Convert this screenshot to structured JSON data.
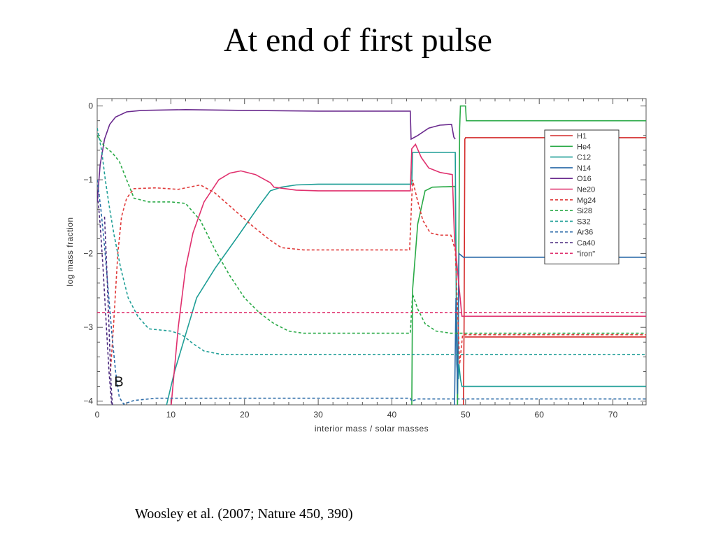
{
  "slide": {
    "title": "At end of first pulse",
    "caption": "Woosley et al. (2007; Nature 450, 390)"
  },
  "chart_data": {
    "type": "line",
    "xlabel": "interior mass / solar masses",
    "ylabel": "log mass fraction",
    "xlim": [
      0,
      74.5
    ],
    "ylim": [
      -4.05,
      0.1
    ],
    "xticks": [
      0,
      10,
      20,
      30,
      40,
      50,
      60,
      70
    ],
    "yticks": [
      0,
      -1,
      -2,
      -3,
      -4
    ],
    "xtick_labels": [
      "0",
      "10",
      "20",
      "30",
      "40",
      "50",
      "60",
      "70"
    ],
    "ytick_labels": [
      "0",
      "−1",
      "−2",
      "−3",
      "−4"
    ],
    "grid": false,
    "legend_position": "top-right",
    "annotation": "B",
    "series": [
      {
        "name": "H1",
        "color": "#d42a2a",
        "dash": "solid",
        "points": [
          [
            49.7,
            -4.1
          ],
          [
            49.8,
            -3.0
          ],
          [
            49.9,
            -0.45
          ],
          [
            50.0,
            -0.43
          ],
          [
            74.5,
            -0.43
          ]
        ]
      },
      {
        "name": "H1",
        "color": "#d42a2a",
        "dash": "solid",
        "legend": false,
        "points": [
          [
            49.9,
            -3.13
          ],
          [
            74.5,
            -3.13
          ]
        ]
      },
      {
        "name": "He4",
        "color": "#2aaa47",
        "dash": "solid",
        "points": [
          [
            42.7,
            -4.1
          ],
          [
            42.8,
            -2.5
          ],
          [
            43.5,
            -1.6
          ],
          [
            44.5,
            -1.15
          ],
          [
            45.5,
            -1.1
          ],
          [
            48.6,
            -1.09
          ],
          [
            48.7,
            -2.0
          ],
          [
            48.9,
            -4.1
          ],
          [
            49.0,
            -3.2
          ],
          [
            49.2,
            -0.3
          ],
          [
            49.3,
            0.0
          ],
          [
            50.0,
            0.0
          ],
          [
            50.1,
            -0.2
          ],
          [
            74.5,
            -0.2
          ]
        ]
      },
      {
        "name": "C12",
        "color": "#1e9e96",
        "dash": "solid",
        "points": [
          [
            9.3,
            -4.1
          ],
          [
            10.5,
            -3.6
          ],
          [
            12,
            -3.1
          ],
          [
            13.5,
            -2.6
          ],
          [
            16,
            -2.2
          ],
          [
            19,
            -1.78
          ],
          [
            22,
            -1.35
          ],
          [
            23.5,
            -1.15
          ],
          [
            25,
            -1.1
          ],
          [
            27,
            -1.07
          ],
          [
            30,
            -1.06
          ],
          [
            42.7,
            -1.06
          ],
          [
            42.8,
            -0.63
          ],
          [
            48.6,
            -0.63
          ],
          [
            48.8,
            -3.5
          ],
          [
            49.0,
            -3.7
          ],
          [
            49.1,
            -3.5
          ],
          [
            49.3,
            -3.7
          ],
          [
            49.5,
            -3.8
          ],
          [
            74.5,
            -3.8
          ]
        ]
      },
      {
        "name": "N14",
        "color": "#2a6aa8",
        "dash": "solid",
        "points": [
          [
            48.5,
            -4.1
          ],
          [
            48.7,
            -2.6
          ],
          [
            48.9,
            -3.9
          ],
          [
            49.1,
            -2.0
          ],
          [
            49.7,
            -2.05
          ],
          [
            74.5,
            -2.05
          ]
        ]
      },
      {
        "name": "O16",
        "color": "#6a2a8e",
        "dash": "solid",
        "points": [
          [
            0,
            -1.3
          ],
          [
            0.4,
            -0.8
          ],
          [
            1,
            -0.45
          ],
          [
            1.7,
            -0.25
          ],
          [
            2.5,
            -0.15
          ],
          [
            4,
            -0.08
          ],
          [
            6,
            -0.06
          ],
          [
            12,
            -0.05
          ],
          [
            20,
            -0.06
          ],
          [
            30,
            -0.07
          ],
          [
            40,
            -0.07
          ],
          [
            42.5,
            -0.07
          ],
          [
            42.6,
            -0.45
          ],
          [
            43.5,
            -0.4
          ],
          [
            45,
            -0.3
          ],
          [
            46.5,
            -0.26
          ],
          [
            48.1,
            -0.25
          ],
          [
            48.4,
            -0.42
          ],
          [
            48.6,
            -0.45
          ]
        ]
      },
      {
        "name": "Ne20",
        "color": "#e0306e",
        "dash": "solid",
        "points": [
          [
            10,
            -4.1
          ],
          [
            11,
            -3.0
          ],
          [
            12,
            -2.2
          ],
          [
            13,
            -1.72
          ],
          [
            14.5,
            -1.3
          ],
          [
            16.5,
            -1.0
          ],
          [
            18,
            -0.91
          ],
          [
            19.5,
            -0.88
          ],
          [
            21.5,
            -0.93
          ],
          [
            23.5,
            -1.04
          ],
          [
            24,
            -1.1
          ],
          [
            27,
            -1.14
          ],
          [
            30,
            -1.15
          ],
          [
            42.5,
            -1.15
          ],
          [
            42.7,
            -0.58
          ],
          [
            43.2,
            -0.52
          ],
          [
            44,
            -0.7
          ],
          [
            45,
            -0.84
          ],
          [
            46.5,
            -0.9
          ],
          [
            48.2,
            -0.93
          ],
          [
            48.5,
            -1.8
          ],
          [
            49.5,
            -2.85
          ],
          [
            74.5,
            -2.85
          ]
        ]
      },
      {
        "name": "Mg24",
        "color": "#e03a3a",
        "dash": "dashed",
        "points": [
          [
            1.8,
            -3.6
          ],
          [
            2.2,
            -3.0
          ],
          [
            2.8,
            -2.0
          ],
          [
            3.3,
            -1.5
          ],
          [
            4,
            -1.25
          ],
          [
            5,
            -1.12
          ],
          [
            8,
            -1.11
          ],
          [
            11,
            -1.13
          ],
          [
            14,
            -1.07
          ],
          [
            16,
            -1.18
          ],
          [
            18.5,
            -1.4
          ],
          [
            21,
            -1.62
          ],
          [
            23.5,
            -1.82
          ],
          [
            25,
            -1.92
          ],
          [
            28,
            -1.95
          ],
          [
            42.4,
            -1.95
          ],
          [
            42.8,
            -1.0
          ],
          [
            43.4,
            -1.25
          ],
          [
            44.2,
            -1.55
          ],
          [
            45.2,
            -1.72
          ],
          [
            46.5,
            -1.75
          ],
          [
            48.0,
            -1.75
          ],
          [
            48.6,
            -1.95
          ],
          [
            49.2,
            -3.5
          ],
          [
            49.6,
            -3.1
          ],
          [
            74.5,
            -3.1
          ]
        ]
      },
      {
        "name": "Si28",
        "color": "#2aaa47",
        "dash": "dashed",
        "points": [
          [
            0,
            -0.4
          ],
          [
            1,
            -0.55
          ],
          [
            2,
            -0.63
          ],
          [
            3,
            -0.75
          ],
          [
            4,
            -1.0
          ],
          [
            5,
            -1.25
          ],
          [
            7,
            -1.3
          ],
          [
            10,
            -1.3
          ],
          [
            12,
            -1.32
          ],
          [
            14,
            -1.55
          ],
          [
            16,
            -1.95
          ],
          [
            18,
            -2.3
          ],
          [
            20,
            -2.6
          ],
          [
            22,
            -2.8
          ],
          [
            24,
            -2.95
          ],
          [
            26,
            -3.05
          ],
          [
            28,
            -3.08
          ],
          [
            42.5,
            -3.08
          ],
          [
            42.8,
            -2.55
          ],
          [
            43.5,
            -2.75
          ],
          [
            44.5,
            -2.95
          ],
          [
            46,
            -3.05
          ],
          [
            48.0,
            -3.08
          ],
          [
            74.5,
            -3.08
          ]
        ]
      },
      {
        "name": "S32",
        "color": "#1e9e96",
        "dash": "dashed",
        "points": [
          [
            0,
            -0.3
          ],
          [
            0.6,
            -0.6
          ],
          [
            1.1,
            -1.0
          ],
          [
            1.7,
            -1.4
          ],
          [
            2.3,
            -1.75
          ],
          [
            3.2,
            -2.2
          ],
          [
            4.2,
            -2.6
          ],
          [
            5.5,
            -2.85
          ],
          [
            7,
            -3.02
          ],
          [
            10,
            -3.05
          ],
          [
            11.5,
            -3.1
          ],
          [
            13,
            -3.22
          ],
          [
            14.5,
            -3.32
          ],
          [
            17,
            -3.37
          ],
          [
            25,
            -3.37
          ],
          [
            74.5,
            -3.37
          ]
        ]
      },
      {
        "name": "Ar36",
        "color": "#2a6aa8",
        "dash": "dashed",
        "points": [
          [
            0,
            -1.0
          ],
          [
            0.5,
            -1.4
          ],
          [
            1,
            -1.9
          ],
          [
            1.5,
            -2.5
          ],
          [
            2,
            -3.1
          ],
          [
            2.5,
            -3.6
          ],
          [
            3,
            -3.95
          ],
          [
            3.6,
            -4.04
          ],
          [
            5,
            -3.99
          ],
          [
            8,
            -3.96
          ],
          [
            20,
            -3.96
          ],
          [
            42.5,
            -3.96
          ],
          [
            42.7,
            -4.0
          ],
          [
            43.5,
            -3.97
          ],
          [
            74.5,
            -3.97
          ]
        ]
      },
      {
        "name": "Ca40",
        "color": "#4a2a7e",
        "dash": "dashed",
        "points": [
          [
            0,
            -1.15
          ],
          [
            0.4,
            -1.6
          ],
          [
            0.8,
            -2.2
          ],
          [
            1.2,
            -2.9
          ],
          [
            1.6,
            -3.6
          ],
          [
            2.0,
            -4.1
          ]
        ]
      },
      {
        "name": "Ca40",
        "color": "#4a2a7e",
        "dash": "dashed",
        "legend": false,
        "points": [
          [
            1.0,
            -1.5
          ],
          [
            1.3,
            -2.2
          ],
          [
            1.6,
            -3.0
          ],
          [
            1.9,
            -3.8
          ],
          [
            2.1,
            -4.1
          ]
        ]
      },
      {
        "name": "\"iron\"",
        "color": "#e0306e",
        "dash": "dashed",
        "points": [
          [
            0,
            -2.8
          ],
          [
            74.5,
            -2.8
          ]
        ]
      }
    ]
  }
}
